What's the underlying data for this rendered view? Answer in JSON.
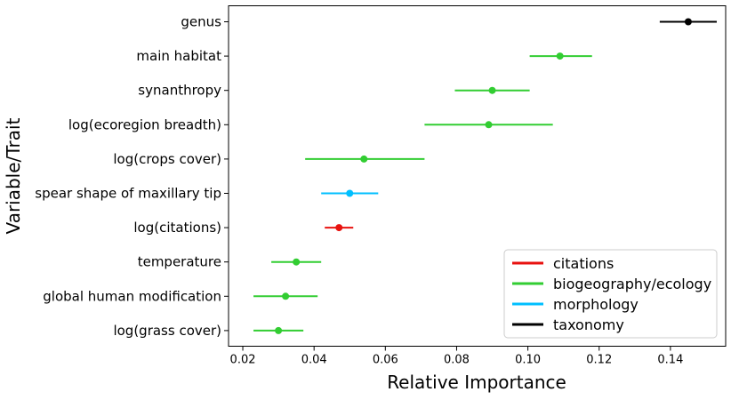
{
  "chart_data": {
    "type": "scatter",
    "title": "",
    "xlabel": "Relative Importance",
    "ylabel": "Variable/Trait",
    "xlim": [
      0.016,
      0.1555
    ],
    "xticks": [
      0.02,
      0.04,
      0.06,
      0.08,
      0.1,
      0.12,
      0.14
    ],
    "xtick_labels": [
      "0.02",
      "0.04",
      "0.06",
      "0.08",
      "0.10",
      "0.12",
      "0.14"
    ],
    "grid": false,
    "legend_position": "bottom-right",
    "categories": [
      "genus",
      "main habitat",
      "synanthropy",
      "log(ecoregion breadth)",
      "log(crops cover)",
      "spear shape of maxillary tip",
      "log(citations)",
      "temperature",
      "global human modification",
      "log(grass cover)"
    ],
    "points": [
      {
        "label": "genus",
        "value": 0.145,
        "lower": 0.137,
        "upper": 0.153,
        "group": "taxonomy"
      },
      {
        "label": "main habitat",
        "value": 0.109,
        "lower": 0.1005,
        "upper": 0.118,
        "group": "biogeography/ecology"
      },
      {
        "label": "synanthropy",
        "value": 0.09,
        "lower": 0.0795,
        "upper": 0.1005,
        "group": "biogeography/ecology"
      },
      {
        "label": "log(ecoregion breadth)",
        "value": 0.089,
        "lower": 0.071,
        "upper": 0.107,
        "group": "biogeography/ecology"
      },
      {
        "label": "log(crops cover)",
        "value": 0.054,
        "lower": 0.0375,
        "upper": 0.071,
        "group": "biogeography/ecology"
      },
      {
        "label": "spear shape of maxillary tip",
        "value": 0.05,
        "lower": 0.042,
        "upper": 0.058,
        "group": "morphology"
      },
      {
        "label": "log(citations)",
        "value": 0.047,
        "lower": 0.043,
        "upper": 0.051,
        "group": "citations"
      },
      {
        "label": "temperature",
        "value": 0.035,
        "lower": 0.028,
        "upper": 0.042,
        "group": "biogeography/ecology"
      },
      {
        "label": "global human modification",
        "value": 0.032,
        "lower": 0.023,
        "upper": 0.041,
        "group": "biogeography/ecology"
      },
      {
        "label": "log(grass cover)",
        "value": 0.03,
        "lower": 0.023,
        "upper": 0.037,
        "group": "biogeography/ecology"
      }
    ],
    "legend": [
      {
        "name": "citations",
        "color": "#e8120f"
      },
      {
        "name": "biogeography/ecology",
        "color": "#32cd32"
      },
      {
        "name": "morphology",
        "color": "#00bfff"
      },
      {
        "name": "taxonomy",
        "color": "#000000"
      }
    ]
  }
}
